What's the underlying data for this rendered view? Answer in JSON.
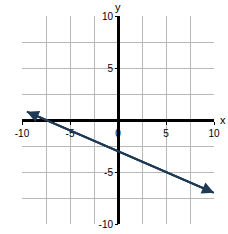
{
  "chart_data": {
    "type": "line",
    "x_label": "x",
    "y_label": "y",
    "x": [
      -9.5,
      10
    ],
    "values": [
      0.8,
      -7
    ],
    "color": "#1f3a56",
    "xlim": [
      -10,
      10
    ],
    "xticks": [
      -10,
      -5,
      0,
      5,
      10
    ],
    "ylim": [
      -10,
      10
    ],
    "yticks": [
      -10,
      -5,
      5,
      10
    ],
    "grid": true
  }
}
